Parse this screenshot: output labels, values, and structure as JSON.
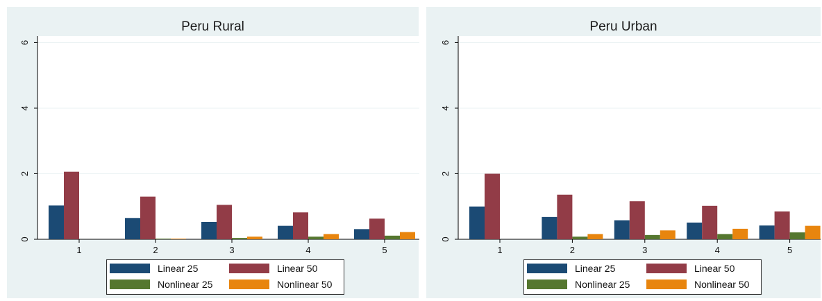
{
  "colors": {
    "linear25": "#1b4a74",
    "linear50": "#923c47",
    "nonlinear25": "#55772f",
    "nonlinear50": "#e8850e",
    "panel_bg": "#eaf2f3",
    "plot_bg": "#ffffff",
    "grid": "#eaf2f3"
  },
  "chart_data": [
    {
      "type": "bar",
      "title": "Peru Rural",
      "categories": [
        "1",
        "2",
        "3",
        "4",
        "5"
      ],
      "yticks": [
        "0",
        "2",
        "4",
        "6"
      ],
      "ylim": [
        0,
        6.2
      ],
      "grid": true,
      "legend_position": "bottom",
      "series": [
        {
          "name": "Linear 25",
          "color_key": "linear25",
          "values": [
            1.03,
            0.65,
            0.53,
            0.41,
            0.31
          ]
        },
        {
          "name": "Linear 50",
          "color_key": "linear50",
          "values": [
            2.06,
            1.3,
            1.05,
            0.82,
            0.63
          ]
        },
        {
          "name": "Nonlinear 25",
          "color_key": "nonlinear25",
          "values": [
            0.0,
            0.02,
            0.04,
            0.08,
            0.11
          ]
        },
        {
          "name": "Nonlinear 50",
          "color_key": "nonlinear50",
          "values": [
            0.0,
            0.02,
            0.08,
            0.16,
            0.22
          ]
        }
      ]
    },
    {
      "type": "bar",
      "title": "Peru Urban",
      "categories": [
        "1",
        "2",
        "3",
        "4",
        "5"
      ],
      "yticks": [
        "0",
        "2",
        "4",
        "6"
      ],
      "ylim": [
        0,
        6.2
      ],
      "grid": true,
      "legend_position": "bottom",
      "series": [
        {
          "name": "Linear 25",
          "color_key": "linear25",
          "values": [
            1.0,
            0.68,
            0.58,
            0.51,
            0.42
          ]
        },
        {
          "name": "Linear 50",
          "color_key": "linear50",
          "values": [
            2.0,
            1.36,
            1.16,
            1.02,
            0.85
          ]
        },
        {
          "name": "Nonlinear 25",
          "color_key": "nonlinear25",
          "values": [
            0.0,
            0.08,
            0.13,
            0.16,
            0.21
          ]
        },
        {
          "name": "Nonlinear 50",
          "color_key": "nonlinear50",
          "values": [
            0.0,
            0.16,
            0.27,
            0.32,
            0.41
          ]
        }
      ]
    }
  ]
}
